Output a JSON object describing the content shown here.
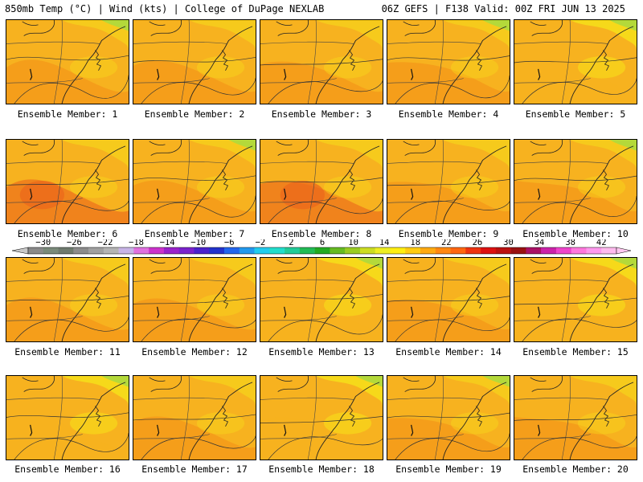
{
  "header": {
    "left": "850mb Temp (°C) | Wind (kts) | College of DuPage NEXLAB",
    "right": "06Z GEFS | F138 Valid: 00Z FRI JUN 13 2025"
  },
  "members": [
    {
      "label": "Ensemble Member: 1",
      "tone": "warm"
    },
    {
      "label": "Ensemble Member: 2",
      "tone": "warm"
    },
    {
      "label": "Ensemble Member: 3",
      "tone": "warm"
    },
    {
      "label": "Ensemble Member: 4",
      "tone": "mid"
    },
    {
      "label": "Ensemble Member: 5",
      "tone": "cool"
    },
    {
      "label": "Ensemble Member: 6",
      "tone": "hot"
    },
    {
      "label": "Ensemble Member: 7",
      "tone": "warm"
    },
    {
      "label": "Ensemble Member: 8",
      "tone": "hot"
    },
    {
      "label": "Ensemble Member: 9",
      "tone": "warm"
    },
    {
      "label": "Ensemble Member: 10",
      "tone": "mid"
    },
    {
      "label": "Ensemble Member: 11",
      "tone": "mid"
    },
    {
      "label": "Ensemble Member: 12",
      "tone": "warm"
    },
    {
      "label": "Ensemble Member: 13",
      "tone": "cool"
    },
    {
      "label": "Ensemble Member: 14",
      "tone": "warm"
    },
    {
      "label": "Ensemble Member: 15",
      "tone": "cool"
    },
    {
      "label": "Ensemble Member: 16",
      "tone": "cool"
    },
    {
      "label": "Ensemble Member: 17",
      "tone": "mid"
    },
    {
      "label": "Ensemble Member: 18",
      "tone": "cool"
    },
    {
      "label": "Ensemble Member: 19",
      "tone": "warm"
    },
    {
      "label": "Ensemble Member: 20",
      "tone": "mid"
    }
  ],
  "colorbar": {
    "ticks": [
      "−30",
      "−26",
      "−22",
      "−18",
      "−14",
      "−10",
      "−6",
      "−2",
      "2",
      "6",
      "10",
      "14",
      "18",
      "22",
      "26",
      "30",
      "34",
      "38",
      "42"
    ],
    "colors": [
      "#8a8a8a",
      "#7a8a7a",
      "#6e7a6e",
      "#8c8c8c",
      "#a0a0a0",
      "#b4b4b4",
      "#c8b4e6",
      "#e070e0",
      "#cc33cc",
      "#9a22cc",
      "#7a22cc",
      "#4a22cc",
      "#2233cc",
      "#2266ee",
      "#2299ee",
      "#22ccee",
      "#22ddcc",
      "#22cc99",
      "#22bb55",
      "#22aa22",
      "#66bb22",
      "#99cc22",
      "#ccdd22",
      "#eeee22",
      "#ffee11",
      "#ffcc11",
      "#ffaa11",
      "#ff8811",
      "#ff6611",
      "#ee3311",
      "#dd1111",
      "#bb1111",
      "#991111",
      "#aa1166",
      "#cc22aa",
      "#ee44cc",
      "#ff77dd",
      "#ff99ee",
      "#ffbbee"
    ],
    "left_arrow": "#c8c8c8",
    "right_arrow": "#ffc8f0"
  },
  "palette": {
    "base": "#f7b21f",
    "warm": "#f59a1a",
    "hot": "#ef7a1c",
    "yellow": "#f6df1a",
    "green": "#b4d93a",
    "contour": "#444444"
  }
}
